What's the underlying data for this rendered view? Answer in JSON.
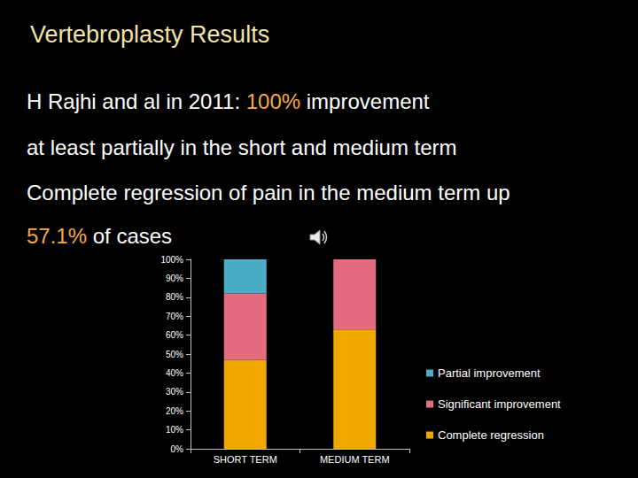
{
  "slide": {
    "title": "Vertebroplasty Results",
    "lines": [
      [
        {
          "text": "H Rajhi and al in 2011: "
        },
        {
          "text": "100%",
          "color": "#f5a94a"
        },
        {
          "text": " improvement"
        }
      ],
      [
        {
          "text": "at least partially in the short and medium term"
        }
      ],
      [
        {
          "text": "Complete regression of pain in the medium term up"
        }
      ],
      [
        {
          "text": "57.1%",
          "color": "#f5a94a"
        },
        {
          "text": " of cases"
        }
      ]
    ]
  },
  "chart_data": {
    "type": "bar",
    "stacked": true,
    "categories": [
      "SHORT TERM",
      "MEDIUM TERM"
    ],
    "series": [
      {
        "name": "Complete regression",
        "color": "#f0a800",
        "values": [
          47,
          63
        ]
      },
      {
        "name": "Significant improvement",
        "color": "#e46c80",
        "values": [
          35,
          37
        ]
      },
      {
        "name": "Partial improvement",
        "color": "#4bacc6",
        "values": [
          18,
          0
        ]
      }
    ],
    "ylim": [
      0,
      100
    ],
    "yticks": [
      {
        "value": 0,
        "label": "0%"
      },
      {
        "value": 10,
        "label": "10%"
      },
      {
        "value": 20,
        "label": "20%"
      },
      {
        "value": 30,
        "label": "30%"
      },
      {
        "value": 40,
        "label": "40%"
      },
      {
        "value": 50,
        "label": "50%"
      },
      {
        "value": 60,
        "label": "60%"
      },
      {
        "value": 70,
        "label": "70%"
      },
      {
        "value": 80,
        "label": "80%"
      },
      {
        "value": 90,
        "label": "90%"
      },
      {
        "value": 100,
        "label": "100%"
      }
    ],
    "grid": false,
    "legend": "right"
  }
}
